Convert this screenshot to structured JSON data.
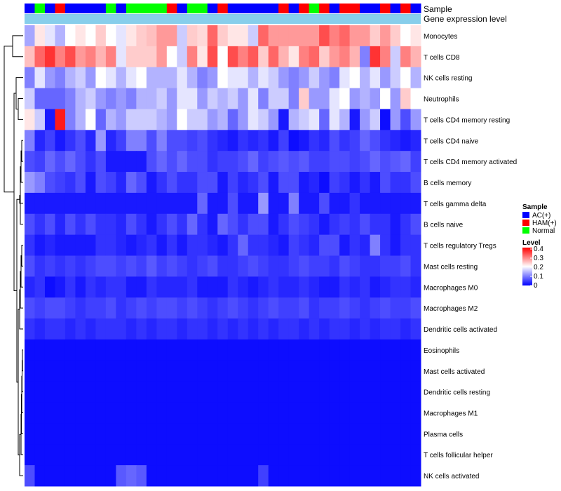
{
  "chart_data": {
    "type": "heatmap",
    "title": "",
    "annotation_tracks": [
      {
        "label": "Sample",
        "values": [
          "AC(+)",
          "Normal",
          "AC(+)",
          "HAM(+)",
          "AC(+)",
          "AC(+)",
          "AC(+)",
          "AC(+)",
          "Normal",
          "AC(+)",
          "Normal",
          "Normal",
          "Normal",
          "Normal",
          "HAM(+)",
          "AC(+)",
          "Normal",
          "Normal",
          "AC(+)",
          "HAM(+)",
          "AC(+)",
          "AC(+)",
          "AC(+)",
          "AC(+)",
          "AC(+)",
          "HAM(+)",
          "AC(+)",
          "HAM(+)",
          "Normal",
          "HAM(+)",
          "AC(+)",
          "HAM(+)",
          "HAM(+)",
          "AC(+)",
          "AC(+)",
          "HAM(+)",
          "AC(+)",
          "HAM(+)",
          "AC(+)"
        ]
      },
      {
        "label": "Gene expression level",
        "values": []
      }
    ],
    "rows": [
      "Monocytes",
      "T cells CD8",
      "NK cells resting",
      "Neutrophils",
      "T cells CD4 memory resting",
      "T cells CD4 naive",
      "T cells CD4 memory activated",
      "B cells memory",
      "T cells gamma delta",
      "B cells naive",
      "T cells regulatory  Tregs",
      "Mast cells resting",
      "Macrophages M0",
      "Macrophages M2",
      "Dendritic cells activated",
      "Eosinophils",
      "Mast cells activated",
      "Dendritic cells resting",
      "Macrophages M1",
      "Plasma cells",
      "T cells follicular helper",
      "NK cells activated"
    ],
    "n_columns": 39,
    "matrix": [
      [
        0.13,
        0.22,
        0.18,
        0.14,
        0.2,
        0.22,
        0.2,
        0.24,
        0.2,
        0.18,
        0.22,
        0.24,
        0.25,
        0.28,
        0.28,
        0.16,
        0.24,
        0.23,
        0.32,
        0.24,
        0.22,
        0.22,
        0.16,
        0.32,
        0.28,
        0.28,
        0.28,
        0.28,
        0.28,
        0.34,
        0.3,
        0.32,
        0.28,
        0.28,
        0.24,
        0.28,
        0.24,
        0.2,
        0.22
      ],
      [
        0.25,
        0.32,
        0.36,
        0.3,
        0.34,
        0.28,
        0.3,
        0.26,
        0.3,
        0.18,
        0.24,
        0.24,
        0.24,
        0.28,
        0.2,
        0.16,
        0.3,
        0.22,
        0.34,
        0.2,
        0.34,
        0.3,
        0.33,
        0.24,
        0.32,
        0.26,
        0.22,
        0.3,
        0.32,
        0.24,
        0.28,
        0.3,
        0.26,
        0.1,
        0.36,
        0.3,
        0.16,
        0.3,
        0.26
      ],
      [
        0.1,
        0.18,
        0.12,
        0.1,
        0.14,
        0.16,
        0.12,
        0.2,
        0.18,
        0.14,
        0.18,
        0.2,
        0.14,
        0.14,
        0.14,
        0.18,
        0.14,
        0.1,
        0.12,
        0.2,
        0.18,
        0.18,
        0.14,
        0.18,
        0.16,
        0.12,
        0.1,
        0.12,
        0.16,
        0.12,
        0.1,
        0.18,
        0.2,
        0.14,
        0.18,
        0.12,
        0.16,
        0.2,
        0.14
      ],
      [
        0.16,
        0.08,
        0.08,
        0.08,
        0.1,
        0.14,
        0.16,
        0.12,
        0.1,
        0.12,
        0.1,
        0.14,
        0.14,
        0.16,
        0.12,
        0.18,
        0.18,
        0.12,
        0.16,
        0.14,
        0.16,
        0.12,
        0.18,
        0.1,
        0.16,
        0.16,
        0.1,
        0.24,
        0.12,
        0.12,
        0.18,
        0.2,
        0.12,
        0.14,
        0.12,
        0.2,
        0.12,
        0.24,
        0.2
      ],
      [
        0.22,
        0.16,
        0.02,
        0.38,
        0.1,
        0.14,
        0.2,
        0.08,
        0.14,
        0.12,
        0.16,
        0.16,
        0.16,
        0.14,
        0.12,
        0.2,
        0.16,
        0.16,
        0.12,
        0.14,
        0.08,
        0.12,
        0.18,
        0.16,
        0.12,
        0.02,
        0.14,
        0.16,
        0.18,
        0.08,
        0.18,
        0.14,
        0.02,
        0.12,
        0.16,
        0.01,
        0.12,
        0.06,
        0.12
      ],
      [
        0.1,
        0.03,
        0.05,
        0.02,
        0.04,
        0.06,
        0.03,
        0.12,
        0.03,
        0.05,
        0.1,
        0.1,
        0.06,
        0.1,
        0.06,
        0.06,
        0.05,
        0.06,
        0.04,
        0.03,
        0.02,
        0.04,
        0.03,
        0.04,
        0.02,
        0.05,
        0.01,
        0.02,
        0.04,
        0.03,
        0.06,
        0.04,
        0.05,
        0.08,
        0.06,
        0.04,
        0.03,
        0.02,
        0.03
      ],
      [
        0.06,
        0.05,
        0.08,
        0.06,
        0.08,
        0.06,
        0.04,
        0.06,
        0.02,
        0.02,
        0.02,
        0.02,
        0.06,
        0.08,
        0.06,
        0.08,
        0.06,
        0.06,
        0.04,
        0.05,
        0.05,
        0.06,
        0.08,
        0.05,
        0.06,
        0.07,
        0.06,
        0.07,
        0.05,
        0.05,
        0.06,
        0.06,
        0.05,
        0.06,
        0.08,
        0.06,
        0.07,
        0.08,
        0.05
      ],
      [
        0.12,
        0.1,
        0.06,
        0.05,
        0.04,
        0.06,
        0.02,
        0.06,
        0.05,
        0.03,
        0.08,
        0.06,
        0.02,
        0.04,
        0.06,
        0.04,
        0.04,
        0.06,
        0.06,
        0.02,
        0.05,
        0.03,
        0.04,
        0.06,
        0.02,
        0.06,
        0.06,
        0.02,
        0.03,
        0.01,
        0.05,
        0.04,
        0.02,
        0.04,
        0.02,
        0.06,
        0.04,
        0.04,
        0.06
      ],
      [
        0.02,
        0.02,
        0.02,
        0.02,
        0.02,
        0.02,
        0.02,
        0.02,
        0.02,
        0.02,
        0.02,
        0.02,
        0.02,
        0.02,
        0.02,
        0.02,
        0.02,
        0.08,
        0.02,
        0.02,
        0.06,
        0.02,
        0.02,
        0.12,
        0.02,
        0.02,
        0.1,
        0.02,
        0.02,
        0.06,
        0.02,
        0.02,
        0.04,
        0.02,
        0.02,
        0.02,
        0.02,
        0.02,
        0.02
      ],
      [
        0.06,
        0.04,
        0.06,
        0.03,
        0.06,
        0.04,
        0.06,
        0.04,
        0.04,
        0.03,
        0.06,
        0.04,
        0.02,
        0.04,
        0.06,
        0.04,
        0.08,
        0.04,
        0.02,
        0.08,
        0.06,
        0.04,
        0.06,
        0.06,
        0.02,
        0.04,
        0.06,
        0.05,
        0.04,
        0.02,
        0.04,
        0.05,
        0.04,
        0.06,
        0.04,
        0.04,
        0.02,
        0.04,
        0.06
      ],
      [
        0.04,
        0.02,
        0.03,
        0.02,
        0.02,
        0.02,
        0.02,
        0.04,
        0.04,
        0.03,
        0.02,
        0.03,
        0.04,
        0.02,
        0.04,
        0.02,
        0.04,
        0.04,
        0.03,
        0.02,
        0.04,
        0.08,
        0.04,
        0.04,
        0.03,
        0.02,
        0.05,
        0.04,
        0.03,
        0.06,
        0.06,
        0.02,
        0.04,
        0.03,
        0.1,
        0.04,
        0.02,
        0.04,
        0.04
      ],
      [
        0.06,
        0.04,
        0.05,
        0.04,
        0.05,
        0.04,
        0.05,
        0.06,
        0.06,
        0.05,
        0.06,
        0.05,
        0.07,
        0.05,
        0.06,
        0.05,
        0.04,
        0.05,
        0.06,
        0.04,
        0.04,
        0.05,
        0.06,
        0.05,
        0.04,
        0.04,
        0.05,
        0.06,
        0.05,
        0.05,
        0.04,
        0.06,
        0.05,
        0.04,
        0.04,
        0.05,
        0.05,
        0.06,
        0.04
      ],
      [
        0.03,
        0.04,
        0.01,
        0.02,
        0.04,
        0.02,
        0.04,
        0.03,
        0.04,
        0.04,
        0.02,
        0.02,
        0.04,
        0.03,
        0.03,
        0.03,
        0.04,
        0.02,
        0.02,
        0.02,
        0.04,
        0.03,
        0.02,
        0.03,
        0.04,
        0.03,
        0.03,
        0.04,
        0.03,
        0.02,
        0.02,
        0.04,
        0.03,
        0.04,
        0.02,
        0.03,
        0.04,
        0.04,
        0.03
      ],
      [
        0.06,
        0.05,
        0.06,
        0.06,
        0.05,
        0.04,
        0.05,
        0.05,
        0.06,
        0.04,
        0.05,
        0.06,
        0.05,
        0.06,
        0.06,
        0.05,
        0.06,
        0.05,
        0.04,
        0.05,
        0.06,
        0.05,
        0.04,
        0.05,
        0.06,
        0.05,
        0.05,
        0.06,
        0.04,
        0.05,
        0.05,
        0.06,
        0.05,
        0.04,
        0.05,
        0.06,
        0.05,
        0.05,
        0.06
      ],
      [
        0.04,
        0.03,
        0.04,
        0.04,
        0.03,
        0.04,
        0.03,
        0.04,
        0.04,
        0.04,
        0.03,
        0.04,
        0.03,
        0.04,
        0.04,
        0.03,
        0.04,
        0.04,
        0.03,
        0.04,
        0.03,
        0.04,
        0.03,
        0.04,
        0.03,
        0.04,
        0.04,
        0.03,
        0.04,
        0.03,
        0.04,
        0.04,
        0.03,
        0.04,
        0.03,
        0.04,
        0.04,
        0.03,
        0.04
      ],
      [
        0.01,
        0.01,
        0.01,
        0.01,
        0.01,
        0.01,
        0.01,
        0.01,
        0.01,
        0.01,
        0.01,
        0.01,
        0.01,
        0.01,
        0.01,
        0.01,
        0.01,
        0.01,
        0.01,
        0.01,
        0.01,
        0.01,
        0.01,
        0.01,
        0.01,
        0.01,
        0.01,
        0.01,
        0.01,
        0.01,
        0.01,
        0.01,
        0.01,
        0.01,
        0.01,
        0.01,
        0.01,
        0.01,
        0.01
      ],
      [
        0.01,
        0.01,
        0.01,
        0.01,
        0.01,
        0.01,
        0.01,
        0.01,
        0.01,
        0.01,
        0.01,
        0.01,
        0.01,
        0.01,
        0.01,
        0.01,
        0.01,
        0.01,
        0.01,
        0.01,
        0.01,
        0.01,
        0.01,
        0.01,
        0.01,
        0.01,
        0.01,
        0.01,
        0.01,
        0.01,
        0.01,
        0.01,
        0.01,
        0.01,
        0.01,
        0.01,
        0.01,
        0.01,
        0.01
      ],
      [
        0.01,
        0.01,
        0.01,
        0.01,
        0.01,
        0.01,
        0.01,
        0.01,
        0.01,
        0.01,
        0.01,
        0.01,
        0.01,
        0.01,
        0.01,
        0.01,
        0.01,
        0.01,
        0.01,
        0.01,
        0.01,
        0.01,
        0.01,
        0.01,
        0.01,
        0.01,
        0.01,
        0.01,
        0.01,
        0.01,
        0.01,
        0.01,
        0.01,
        0.01,
        0.01,
        0.01,
        0.01,
        0.01,
        0.01
      ],
      [
        0.01,
        0.01,
        0.01,
        0.01,
        0.01,
        0.01,
        0.01,
        0.01,
        0.01,
        0.01,
        0.01,
        0.01,
        0.01,
        0.01,
        0.01,
        0.01,
        0.01,
        0.01,
        0.01,
        0.01,
        0.01,
        0.01,
        0.01,
        0.01,
        0.01,
        0.01,
        0.01,
        0.01,
        0.01,
        0.01,
        0.01,
        0.01,
        0.01,
        0.01,
        0.01,
        0.01,
        0.01,
        0.01,
        0.01
      ],
      [
        0.01,
        0.01,
        0.01,
        0.01,
        0.01,
        0.01,
        0.01,
        0.01,
        0.01,
        0.01,
        0.01,
        0.01,
        0.01,
        0.01,
        0.01,
        0.01,
        0.01,
        0.01,
        0.01,
        0.01,
        0.01,
        0.01,
        0.01,
        0.01,
        0.01,
        0.01,
        0.01,
        0.01,
        0.01,
        0.01,
        0.01,
        0.01,
        0.01,
        0.01,
        0.01,
        0.01,
        0.01,
        0.01,
        0.01
      ],
      [
        0.01,
        0.01,
        0.01,
        0.01,
        0.01,
        0.01,
        0.01,
        0.01,
        0.01,
        0.01,
        0.01,
        0.01,
        0.01,
        0.01,
        0.01,
        0.01,
        0.01,
        0.01,
        0.01,
        0.01,
        0.01,
        0.01,
        0.01,
        0.01,
        0.01,
        0.01,
        0.01,
        0.01,
        0.01,
        0.01,
        0.01,
        0.01,
        0.01,
        0.01,
        0.01,
        0.01,
        0.01,
        0.01,
        0.01
      ],
      [
        0.06,
        0.01,
        0.01,
        0.01,
        0.01,
        0.01,
        0.01,
        0.01,
        0.01,
        0.07,
        0.08,
        0.07,
        0.01,
        0.01,
        0.01,
        0.01,
        0.01,
        0.01,
        0.01,
        0.01,
        0.01,
        0.01,
        0.01,
        0.05,
        0.01,
        0.01,
        0.01,
        0.01,
        0.01,
        0.01,
        0.01,
        0.01,
        0.01,
        0.01,
        0.01,
        0.01,
        0.01,
        0.01,
        0.01
      ]
    ],
    "legend": {
      "sample_title": "Sample",
      "sample_items": [
        {
          "label": "AC(+)",
          "color": "#0000ff"
        },
        {
          "label": "HAM(+)",
          "color": "#ff0000"
        },
        {
          "label": "Normal",
          "color": "#00ff00"
        }
      ],
      "level_title": "Level",
      "level_ticks": [
        "0.4",
        "0.3",
        "0.2",
        "0.1",
        "0"
      ],
      "level_range": [
        0,
        0.4
      ]
    },
    "colors": {
      "low": "#0000ff",
      "mid": "#ffffff",
      "high": "#ff0000",
      "expression_track": "#87ceeb"
    },
    "xlabel": "",
    "ylabel": ""
  }
}
